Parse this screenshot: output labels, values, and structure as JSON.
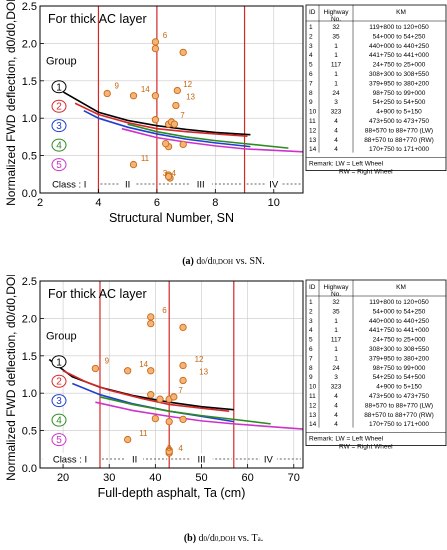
{
  "figure": {
    "captions": [
      {
        "label": "(a)",
        "text": "d",
        "sub": "0",
        "text2": "/d",
        "sub2": "0,DOH",
        "text3": " vs. SN."
      },
      {
        "label": "(b)",
        "text": "d",
        "sub": "0",
        "text2": "/d",
        "sub2": "0,DOH",
        "text3": " vs. T",
        "sub3": "a",
        "text4": "."
      }
    ]
  },
  "table": {
    "headers": [
      "ID",
      "Highway",
      "KM"
    ],
    "header_sub": "No.",
    "rows": [
      [
        "1",
        "32",
        "119+800 to 120+050"
      ],
      [
        "2",
        "35",
        "54+000 to 54+250"
      ],
      [
        "3",
        "1",
        "440+000 to 440+250"
      ],
      [
        "4",
        "1",
        "441+750 to 441+000"
      ],
      [
        "5",
        "117",
        "24+750 to 25+000"
      ],
      [
        "6",
        "1",
        "308+300 to 308+550"
      ],
      [
        "7",
        "1",
        "379+950 to 380+200"
      ],
      [
        "8",
        "24",
        "98+750 to 99+000"
      ],
      [
        "9",
        "3",
        "54+250 to 54+500"
      ],
      [
        "10",
        "323",
        "4+900 to 5+150"
      ],
      [
        "11",
        "4",
        "473+500 to 473+750"
      ],
      [
        "12",
        "4",
        "88+570 to 88+770 (LW)"
      ],
      [
        "13",
        "4",
        "88+570 to 88+770 (RW)"
      ],
      [
        "14",
        "4",
        "170+750 to 171+000"
      ]
    ],
    "remark1": "Remark: LW = Left Wheel",
    "remark2": "RW = Right Wheel"
  },
  "chart_data": [
    {
      "type": "scatter",
      "title": "For thick AC layer",
      "xlabel": "Structural Number, SN",
      "ylabel": "Normalized FWD deflection, d0/d0,DOH",
      "xlim": [
        2,
        11
      ],
      "ylim": [
        0,
        2.5
      ],
      "xticks": [
        "2",
        "4",
        "6",
        "8",
        "10"
      ],
      "yticks": [
        "0.0",
        "0.5",
        "1.0",
        "1.5",
        "2.0",
        "2.5"
      ],
      "class_boundaries": [
        4,
        6,
        9
      ],
      "classes": [
        "Class : I",
        "II",
        "III",
        "IV"
      ],
      "legend_title": "Group",
      "groups": [
        "1",
        "2",
        "3",
        "4",
        "5"
      ],
      "group_colors": [
        "#000000",
        "#d62728",
        "#1f3fd0",
        "#2e8b22",
        "#cc33cc"
      ],
      "points": [
        {
          "id": "1",
          "x": 6.4,
          "y": 0.62
        },
        {
          "id": "2",
          "x": 6.4,
          "y": 0.92
        },
        {
          "id": "3",
          "x": 6.4,
          "y": 0.24
        },
        {
          "id": "4",
          "x": 6.45,
          "y": 0.2
        },
        {
          "id": "5",
          "x": 6.4,
          "y": 0.22
        },
        {
          "id": "6",
          "x": 5.95,
          "y": 2.02
        },
        {
          "id": "7",
          "x": 6.5,
          "y": 0.95
        },
        {
          "id": "8",
          "x": 6.9,
          "y": 0.65
        },
        {
          "id": "9",
          "x": 4.3,
          "y": 1.33
        },
        {
          "id": "10",
          "x": 6.9,
          "y": 1.88
        },
        {
          "id": "11",
          "x": 5.2,
          "y": 0.38
        },
        {
          "id": "12",
          "x": 6.7,
          "y": 1.37
        },
        {
          "id": "13",
          "x": 6.65,
          "y": 1.17
        },
        {
          "id": "14",
          "x": 5.2,
          "y": 1.3
        },
        {
          "id": "",
          "x": 5.95,
          "y": 1.93
        },
        {
          "id": "",
          "x": 5.95,
          "y": 1.3
        },
        {
          "id": "",
          "x": 6.6,
          "y": 0.92
        },
        {
          "id": "",
          "x": 6.3,
          "y": 0.66
        },
        {
          "id": "",
          "x": 5.95,
          "y": 0.98
        }
      ],
      "labeled_points": {
        "6": [
          6.2,
          2.07
        ],
        "9": [
          4.55,
          1.4
        ],
        "14": [
          5.45,
          1.35
        ],
        "12": [
          6.9,
          1.42
        ],
        "13": [
          7.0,
          1.25
        ],
        "7": [
          6.8,
          1.0
        ],
        "11": [
          5.45,
          0.43
        ],
        "4": [
          6.5,
          0.23
        ],
        "3": [
          6.2,
          0.23
        ]
      },
      "curves": [
        {
          "group": "1",
          "x": [
            2.8,
            4,
            5,
            6,
            7,
            8,
            9.2
          ],
          "y": [
            1.35,
            1.08,
            0.97,
            0.9,
            0.85,
            0.81,
            0.78
          ]
        },
        {
          "group": "2",
          "x": [
            3.2,
            4,
            5,
            6,
            7,
            8,
            9.1
          ],
          "y": [
            1.2,
            1.05,
            0.94,
            0.86,
            0.82,
            0.79,
            0.76
          ]
        },
        {
          "group": "3",
          "x": [
            3.5,
            4,
            5,
            6,
            7,
            8,
            9.2
          ],
          "y": [
            1.1,
            1.0,
            0.88,
            0.79,
            0.72,
            0.67,
            0.62
          ]
        },
        {
          "group": "4",
          "x": [
            5,
            6,
            7,
            8,
            9,
            10.5
          ],
          "y": [
            0.92,
            0.82,
            0.75,
            0.7,
            0.66,
            0.6
          ]
        },
        {
          "group": "5",
          "x": [
            4.8,
            6,
            7,
            8,
            9,
            11
          ],
          "y": [
            0.86,
            0.74,
            0.68,
            0.63,
            0.59,
            0.55
          ]
        }
      ]
    },
    {
      "type": "scatter",
      "title": "For thick AC layer",
      "xlabel": "Full-depth asphalt, Ta (cm)",
      "ylabel": "Normalized FWD deflection, d0/d0,DOH",
      "xlim": [
        15,
        72
      ],
      "ylim": [
        0,
        2.5
      ],
      "xticks": [
        "20",
        "30",
        "40",
        "50",
        "60",
        "70"
      ],
      "yticks": [
        "0.0",
        "0.5",
        "1.0",
        "1.5",
        "2.0",
        "2.5"
      ],
      "class_boundaries": [
        28,
        43,
        57
      ],
      "classes": [
        "Class : I",
        "II",
        "III",
        "IV"
      ],
      "legend_title": "Group",
      "groups": [
        "1",
        "2",
        "3",
        "4",
        "5"
      ],
      "group_colors": [
        "#000000",
        "#d62728",
        "#1f3fd0",
        "#2e8b22",
        "#cc33cc"
      ],
      "points": [
        {
          "id": "1",
          "x": 43,
          "y": 0.62
        },
        {
          "id": "2",
          "x": 43,
          "y": 0.92
        },
        {
          "id": "3",
          "x": 43,
          "y": 0.24
        },
        {
          "id": "4",
          "x": 43,
          "y": 0.2
        },
        {
          "id": "5",
          "x": 43,
          "y": 0.22
        },
        {
          "id": "6",
          "x": 39,
          "y": 2.02
        },
        {
          "id": "7",
          "x": 44,
          "y": 0.95
        },
        {
          "id": "8",
          "x": 46,
          "y": 0.65
        },
        {
          "id": "9",
          "x": 27,
          "y": 1.33
        },
        {
          "id": "10",
          "x": 46,
          "y": 1.88
        },
        {
          "id": "11",
          "x": 34,
          "y": 0.38
        },
        {
          "id": "12",
          "x": 46,
          "y": 1.37
        },
        {
          "id": "13",
          "x": 46,
          "y": 1.17
        },
        {
          "id": "14",
          "x": 34,
          "y": 1.3
        },
        {
          "id": "",
          "x": 39,
          "y": 1.93
        },
        {
          "id": "",
          "x": 39,
          "y": 1.3
        },
        {
          "id": "",
          "x": 41,
          "y": 0.92
        },
        {
          "id": "",
          "x": 40,
          "y": 0.66
        },
        {
          "id": "",
          "x": 39,
          "y": 0.98
        }
      ],
      "labeled_points": {
        "6": [
          41.5,
          2.07
        ],
        "9": [
          29,
          1.4
        ],
        "14": [
          36.5,
          1.35
        ],
        "12": [
          48.5,
          1.42
        ],
        "13": [
          49.5,
          1.25
        ],
        "7": [
          45,
          1.0
        ],
        "11": [
          36.5,
          0.43
        ],
        "4": [
          45,
          0.23
        ],
        "3": [
          42.5,
          0.23
        ]
      },
      "curves": [
        {
          "group": "1",
          "x": [
            17,
            22,
            28,
            35,
            43,
            50,
            57
          ],
          "y": [
            1.45,
            1.22,
            1.08,
            0.97,
            0.88,
            0.82,
            0.78
          ]
        },
        {
          "group": "2",
          "x": [
            20,
            25,
            30,
            37,
            43,
            50,
            56
          ],
          "y": [
            1.3,
            1.15,
            1.04,
            0.93,
            0.85,
            0.8,
            0.76
          ]
        },
        {
          "group": "3",
          "x": [
            22,
            28,
            35,
            43,
            50,
            57
          ],
          "y": [
            1.13,
            0.98,
            0.86,
            0.76,
            0.69,
            0.62
          ]
        },
        {
          "group": "4",
          "x": [
            28,
            35,
            43,
            50,
            57,
            65
          ],
          "y": [
            0.95,
            0.85,
            0.76,
            0.7,
            0.65,
            0.59
          ]
        },
        {
          "group": "5",
          "x": [
            27,
            35,
            43,
            50,
            57,
            72
          ],
          "y": [
            0.88,
            0.77,
            0.69,
            0.63,
            0.59,
            0.52
          ]
        }
      ]
    }
  ]
}
